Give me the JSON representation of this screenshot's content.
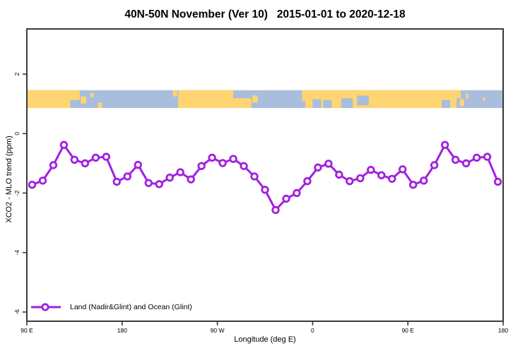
{
  "header": {
    "title": "40N-50N November (Ver 10)   2015-01-01 to 2020-12-18"
  },
  "legend": {
    "label": "Land (Nadir&Glint) and Ocean (Glint)"
  },
  "colors": {
    "line": "#A120E0",
    "marker_fill": "#ffffff",
    "land": "#FFD571",
    "ocean": "#A9BEDC",
    "axis": "#3a3a3a",
    "text": "#000000"
  },
  "chart_data": {
    "type": "line",
    "title": "40N-50N November (Ver 10)   2015-01-01 to 2020-12-18",
    "xlabel": "Longitude (deg E)",
    "ylabel": "XCO2 - MLO trend (ppm)",
    "xlim": [
      90,
      540
    ],
    "ylim": [
      -6.31,
      3.52
    ],
    "grid": false,
    "legend_position": "bottom-left",
    "x_ticks": [
      {
        "lon": 90,
        "label": "90 E"
      },
      {
        "lon": 180,
        "label": "180"
      },
      {
        "lon": 270,
        "label": "90 W"
      },
      {
        "lon": 360,
        "label": "0"
      },
      {
        "lon": 450,
        "label": "90 E"
      },
      {
        "lon": 540,
        "label": "180"
      }
    ],
    "y_ticks": [
      {
        "v": 2,
        "label": "2"
      },
      {
        "v": 0,
        "label": "0"
      },
      {
        "v": -2,
        "label": "-2"
      },
      {
        "v": -4,
        "label": "-4"
      },
      {
        "v": -6,
        "label": "-6"
      }
    ],
    "series": [
      {
        "name": "Land (Nadir&Glint) and Ocean (Glint)",
        "x": [
          95,
          105,
          115,
          125,
          135,
          145,
          155,
          165,
          175,
          185,
          195,
          205,
          215,
          225,
          235,
          245,
          255,
          265,
          275,
          285,
          295,
          305,
          315,
          325,
          335,
          345,
          355,
          365,
          375,
          385,
          395,
          405,
          415,
          425,
          435,
          445,
          455,
          465,
          475,
          485,
          495,
          505,
          515,
          525,
          535
        ],
        "values": [
          -1.72,
          -1.58,
          -1.06,
          -0.38,
          -0.88,
          -1.0,
          -0.81,
          -0.78,
          -1.62,
          -1.44,
          -1.05,
          -1.66,
          -1.7,
          -1.48,
          -1.3,
          -1.54,
          -1.09,
          -0.81,
          -0.99,
          -0.85,
          -1.09,
          -1.44,
          -1.89,
          -2.57,
          -2.19,
          -2.0,
          -1.6,
          -1.14,
          -1.01,
          -1.38,
          -1.6,
          -1.5,
          -1.22,
          -1.4,
          -1.52,
          -1.2,
          -1.72,
          -1.58,
          -1.06,
          -0.38,
          -0.88,
          -1.0,
          -0.81,
          -0.78,
          -1.62
        ]
      }
    ],
    "map_band": {
      "y_top": 1.46,
      "y_bottom": 0.86,
      "note": "40N-50N land/ocean strip, longitude 90E wrapping east to 180",
      "land_patches": [
        {
          "from": 90,
          "to": 127,
          "top": 0,
          "bottom": 1
        },
        {
          "from": 127,
          "to": 140,
          "top": 0,
          "bottom": 0.55
        },
        {
          "from": 127,
          "to": 131,
          "top": 0.55,
          "bottom": 1
        },
        {
          "from": 141,
          "to": 146,
          "top": 0.35,
          "bottom": 0.75
        },
        {
          "from": 150,
          "to": 153,
          "top": 0.15,
          "bottom": 0.4
        },
        {
          "from": 157,
          "to": 161,
          "top": 0.7,
          "bottom": 1
        },
        {
          "from": 228,
          "to": 232,
          "top": 0,
          "bottom": 0.35
        },
        {
          "from": 233,
          "to": 285,
          "top": 0,
          "bottom": 1
        },
        {
          "from": 285,
          "to": 302,
          "top": 0.45,
          "bottom": 1
        },
        {
          "from": 303,
          "to": 308,
          "top": 0.3,
          "bottom": 0.7
        },
        {
          "from": 350,
          "to": 496,
          "top": 0,
          "bottom": 1
        },
        {
          "from": 496,
          "to": 500,
          "top": 0,
          "bottom": 0.45
        },
        {
          "from": 499,
          "to": 503,
          "top": 0.5,
          "bottom": 0.9
        },
        {
          "from": 505,
          "to": 507,
          "top": 0.2,
          "bottom": 0.5
        },
        {
          "from": 521,
          "to": 523,
          "top": 0.4,
          "bottom": 0.6
        }
      ],
      "water_patches": [
        {
          "from": 350,
          "to": 353,
          "top": 0.6,
          "bottom": 1
        },
        {
          "from": 360,
          "to": 368,
          "top": 0.5,
          "bottom": 1
        },
        {
          "from": 370,
          "to": 378,
          "top": 0.55,
          "bottom": 1
        },
        {
          "from": 387,
          "to": 398,
          "top": 0.45,
          "bottom": 1
        },
        {
          "from": 402,
          "to": 413,
          "top": 0.3,
          "bottom": 0.85
        },
        {
          "from": 482,
          "to": 490,
          "top": 0.55,
          "bottom": 1
        }
      ]
    }
  }
}
